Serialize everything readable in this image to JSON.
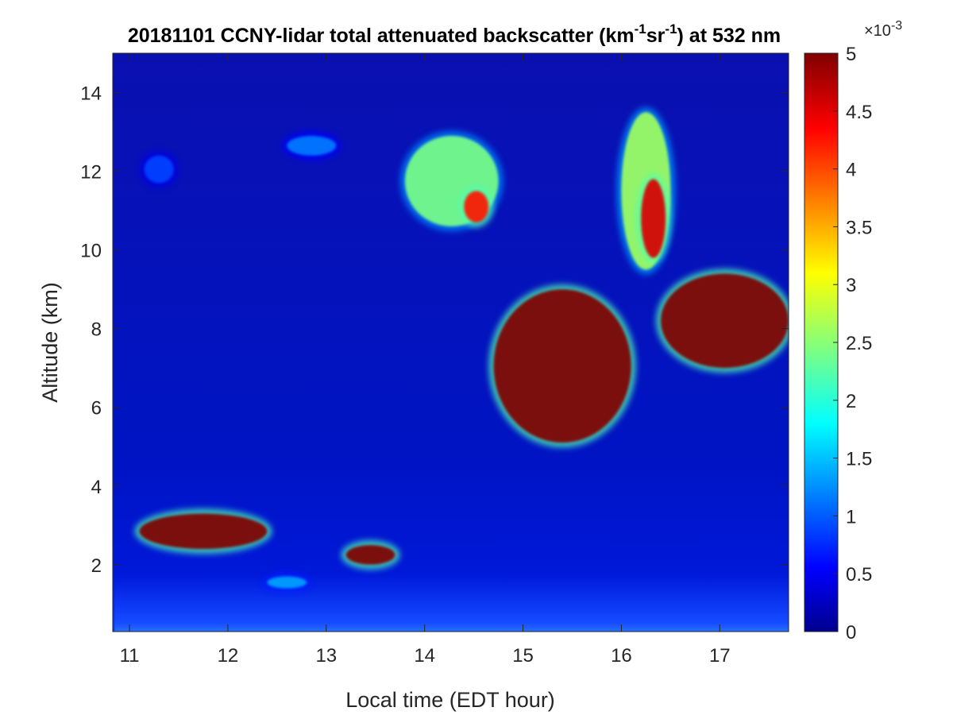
{
  "chart_data": {
    "type": "heatmap",
    "title": {
      "date": "20181101",
      "prefix": "CCNY-lidar total attenuated backscatter (km",
      "sup1": "-1",
      "mid": "sr",
      "sup2": "-1",
      "suffix": ") at 532 nm"
    },
    "xlabel": "Local time (EDT hour)",
    "ylabel": "Altitude (km)",
    "xlim": [
      10.83,
      17.7
    ],
    "ylim": [
      0.3,
      15.0
    ],
    "xticks": [
      11,
      12,
      13,
      14,
      15,
      16,
      17
    ],
    "yticks": [
      2,
      4,
      6,
      8,
      10,
      12,
      14
    ],
    "colorbar": {
      "colormap": "jet",
      "range": [
        0,
        5
      ],
      "ticks": [
        0,
        0.5,
        1,
        1.5,
        2,
        2.5,
        3,
        3.5,
        4,
        4.5,
        5
      ],
      "exponent_label": "×10",
      "exponent_value": "-3"
    },
    "features": [
      {
        "x": [
          10.85,
          17.7
        ],
        "y": [
          0.3,
          1.8
        ],
        "value": 0.8
      },
      {
        "x": [
          11.15,
          11.45
        ],
        "y": [
          11.7,
          12.4
        ],
        "value": 1.0
      },
      {
        "x": [
          12.6,
          13.1
        ],
        "y": [
          12.4,
          12.9
        ],
        "value": 1.3
      },
      {
        "x": [
          13.8,
          14.75
        ],
        "y": [
          10.6,
          12.9
        ],
        "value": 2.6
      },
      {
        "x": [
          14.4,
          14.65
        ],
        "y": [
          10.7,
          11.5
        ],
        "value": 4.5
      },
      {
        "x": [
          14.7,
          16.1
        ],
        "y": [
          5.1,
          9.0
        ],
        "value": 5.0
      },
      {
        "x": [
          16.0,
          16.5
        ],
        "y": [
          9.5,
          13.5
        ],
        "value": 2.8
      },
      {
        "x": [
          16.2,
          16.45
        ],
        "y": [
          9.8,
          11.8
        ],
        "value": 4.8
      },
      {
        "x": [
          16.4,
          17.7
        ],
        "y": [
          7.0,
          9.4
        ],
        "value": 5.0
      },
      {
        "x": [
          11.1,
          12.4
        ],
        "y": [
          2.4,
          3.3
        ],
        "value": 5.0
      },
      {
        "x": [
          13.2,
          13.7
        ],
        "y": [
          2.0,
          2.5
        ],
        "value": 5.0
      },
      {
        "x": [
          12.4,
          12.8
        ],
        "y": [
          1.4,
          1.7
        ],
        "value": 1.5
      }
    ],
    "grid": false
  }
}
